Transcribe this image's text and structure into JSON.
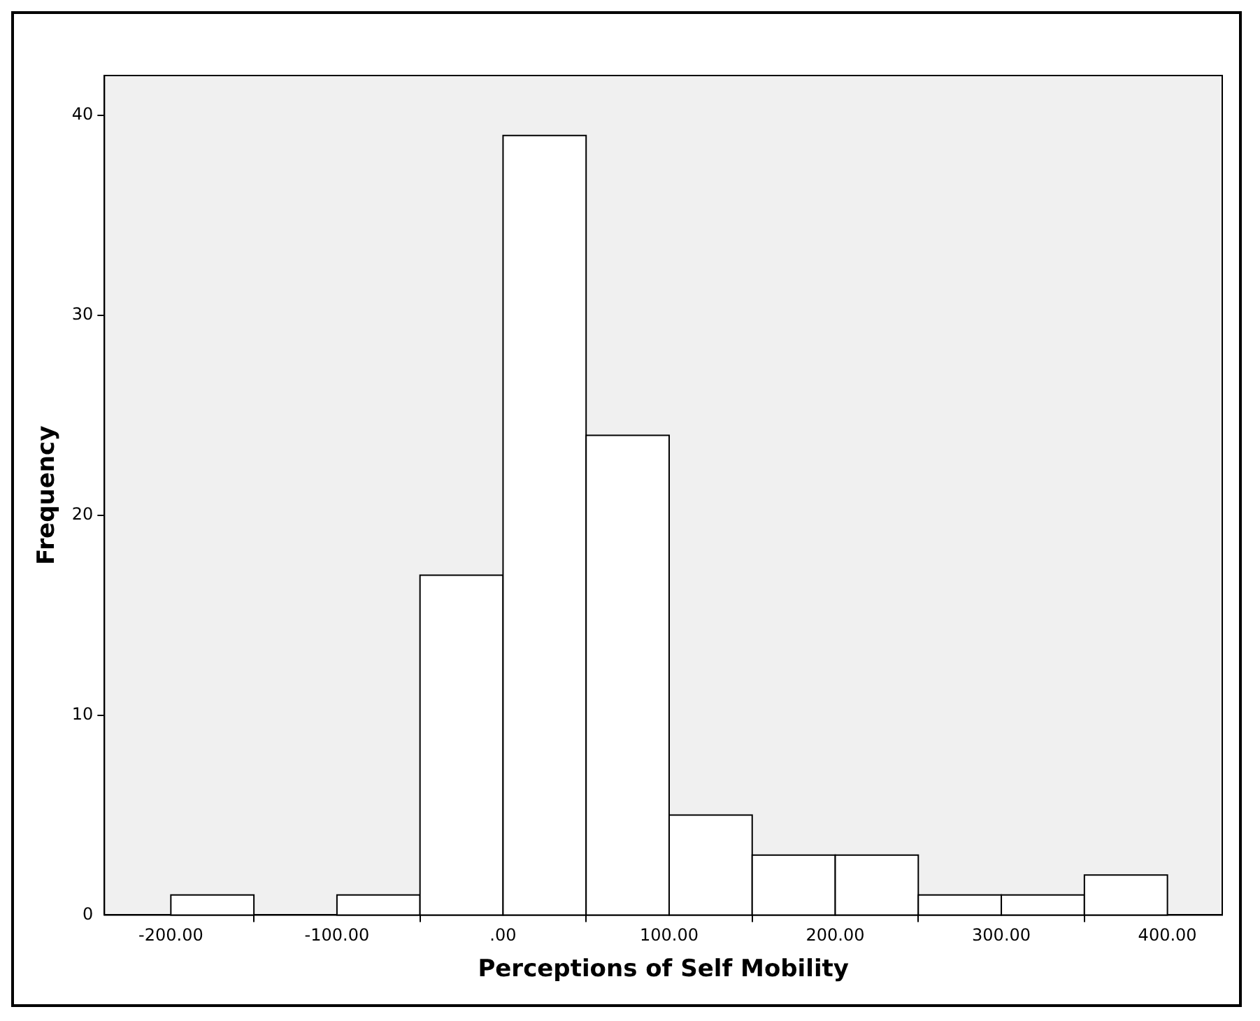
{
  "chart_data": {
    "type": "histogram",
    "xlabel": "Perceptions of Self Mobility",
    "ylabel": "Frequency",
    "bins": [
      -200,
      -150,
      -100,
      -50,
      0,
      50,
      100,
      150,
      200,
      250,
      300,
      350,
      400
    ],
    "values": [
      1,
      0,
      1,
      17,
      39,
      24,
      5,
      3,
      3,
      1,
      1,
      2
    ],
    "color": "#ffffff",
    "xlim": [
      -240,
      433
    ],
    "xticks": [
      {
        "value": -200,
        "label": "-200.00"
      },
      {
        "value": -100,
        "label": "-100.00"
      },
      {
        "value": 0,
        "label": ".00"
      },
      {
        "value": 100,
        "label": "100.00"
      },
      {
        "value": 200,
        "label": "200.00"
      },
      {
        "value": 300,
        "label": "300.00"
      },
      {
        "value": 400,
        "label": "400.00"
      }
    ],
    "ylim": [
      0,
      42
    ],
    "yticks": [
      0,
      10,
      20,
      30,
      40
    ],
    "grid": false,
    "legend": false
  }
}
